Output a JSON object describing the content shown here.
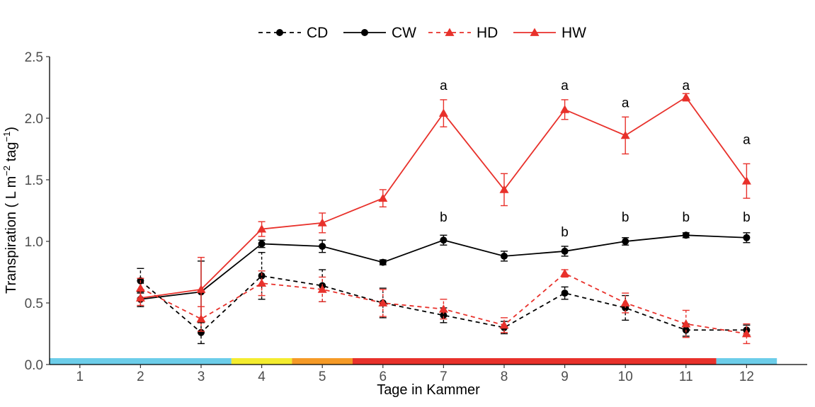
{
  "chart_data": {
    "type": "line",
    "xlabel": "Tage in Kammer",
    "ylabel": "Transpiration ( L m",
    "ylabel_sup1": "−2",
    "ylabel_mid": " tag",
    "ylabel_sup2": "−1",
    "ylabel_end": ")",
    "xlim": [
      0.5,
      13.0
    ],
    "ylim": [
      0,
      2.5
    ],
    "x_ticks": [
      1,
      2,
      3,
      4,
      5,
      6,
      7,
      8,
      9,
      10,
      11,
      12
    ],
    "x_tick_labels": [
      "1",
      "2",
      "3",
      "4",
      "5",
      "6",
      "7",
      "8",
      "9",
      "10",
      "11",
      "12"
    ],
    "y_ticks": [
      0,
      0.5,
      1.0,
      1.5,
      2.0,
      2.5
    ],
    "y_tick_labels": [
      "0.0",
      "0.5",
      "1.0",
      "1.5",
      "2.0",
      "2.5"
    ],
    "grid": false,
    "legend_position": "top",
    "series": [
      {
        "name": "CD",
        "color": "#000000",
        "dash": true,
        "marker": "circle",
        "x": [
          2,
          3,
          4,
          5,
          6,
          7,
          8,
          9,
          10,
          11,
          12
        ],
        "values": [
          0.68,
          0.26,
          0.72,
          0.64,
          0.5,
          0.4,
          0.3,
          0.58,
          0.46,
          0.28,
          0.28
        ],
        "errors": [
          0.1,
          0.09,
          0.19,
          0.13,
          0.12,
          0.06,
          0.05,
          0.05,
          0.1,
          0.05,
          0.04
        ]
      },
      {
        "name": "CW",
        "color": "#000000",
        "dash": false,
        "marker": "circle",
        "x": [
          2,
          3,
          4,
          5,
          6,
          7,
          8,
          9,
          10,
          11,
          12
        ],
        "values": [
          0.53,
          0.59,
          0.98,
          0.96,
          0.83,
          1.01,
          0.88,
          0.92,
          1.0,
          1.05,
          1.03
        ],
        "errors": [
          0.06,
          0.25,
          0.03,
          0.05,
          0.02,
          0.04,
          0.04,
          0.04,
          0.03,
          0.02,
          0.04
        ]
      },
      {
        "name": "HD",
        "color": "#e8312b",
        "dash": true,
        "marker": "triangle",
        "x": [
          2,
          3,
          4,
          5,
          6,
          7,
          8,
          9,
          10,
          11,
          12
        ],
        "values": [
          0.62,
          0.37,
          0.66,
          0.61,
          0.5,
          0.45,
          0.32,
          0.74,
          0.5,
          0.33,
          0.25
        ],
        "errors": [
          0.08,
          0.1,
          0.1,
          0.1,
          0.11,
          0.08,
          0.06,
          0.03,
          0.08,
          0.11,
          0.08
        ]
      },
      {
        "name": "HW",
        "color": "#e8312b",
        "dash": false,
        "marker": "triangle",
        "x": [
          2,
          3,
          4,
          5,
          6,
          7,
          8,
          9,
          10,
          11,
          12
        ],
        "values": [
          0.54,
          0.61,
          1.1,
          1.15,
          1.35,
          2.04,
          1.42,
          2.07,
          1.86,
          2.17,
          1.49
        ],
        "errors": [
          0.06,
          0.26,
          0.06,
          0.08,
          0.07,
          0.11,
          0.13,
          0.08,
          0.15,
          0.03,
          0.14
        ]
      }
    ],
    "annotations": [
      {
        "x": 7,
        "y": 2.23,
        "text": "a"
      },
      {
        "x": 9,
        "y": 2.23,
        "text": "a"
      },
      {
        "x": 10,
        "y": 2.09,
        "text": "a"
      },
      {
        "x": 11,
        "y": 2.23,
        "text": "a"
      },
      {
        "x": 12,
        "y": 1.79,
        "text": "a"
      },
      {
        "x": 7,
        "y": 1.16,
        "text": "b"
      },
      {
        "x": 9,
        "y": 1.04,
        "text": "b"
      },
      {
        "x": 10,
        "y": 1.16,
        "text": "b"
      },
      {
        "x": 11,
        "y": 1.16,
        "text": "b"
      },
      {
        "x": 12,
        "y": 1.16,
        "text": "b"
      }
    ],
    "phase_bar": [
      {
        "from": 0.5,
        "to": 3.5,
        "color": "#6ccde9"
      },
      {
        "from": 3.5,
        "to": 4.5,
        "color": "#f4ec2f"
      },
      {
        "from": 4.5,
        "to": 5.5,
        "color": "#f59a26"
      },
      {
        "from": 5.5,
        "to": 11.5,
        "color": "#e8312b"
      },
      {
        "from": 11.5,
        "to": 12.5,
        "color": "#6ccde9"
      }
    ]
  }
}
